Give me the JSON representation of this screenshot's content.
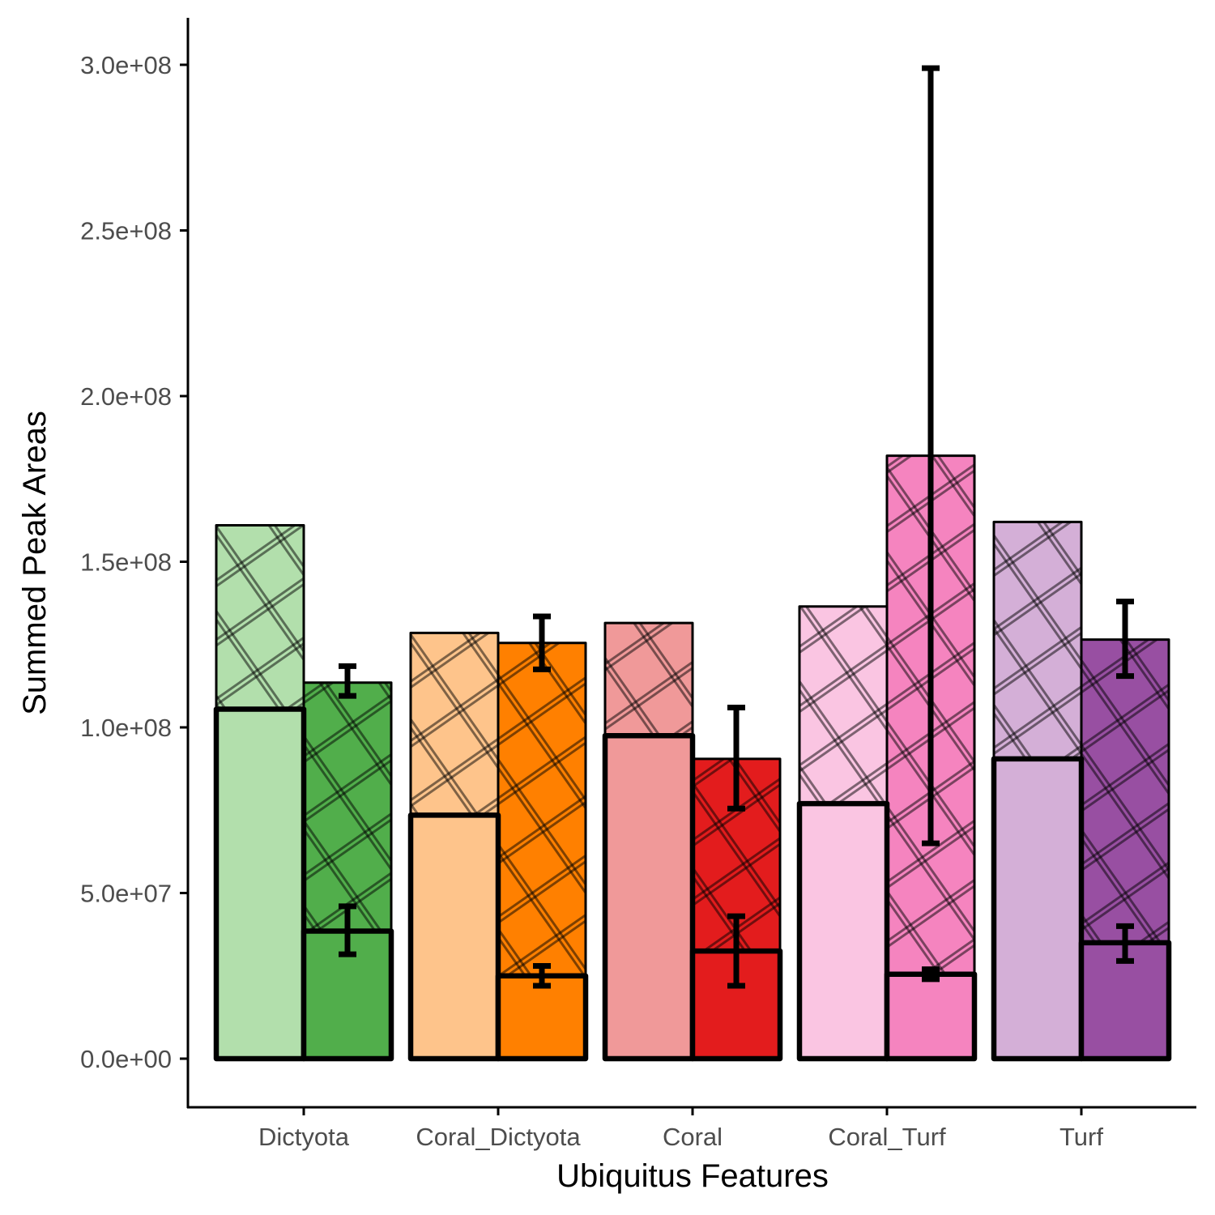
{
  "chart_data": {
    "type": "bar",
    "xlabel": "Ubiquitus Features",
    "ylabel": "Summed Peak Areas",
    "ylim": [
      -15000000,
      315000000
    ],
    "yticks": [
      0,
      50000000,
      100000000,
      150000000,
      200000000,
      250000000,
      300000000
    ],
    "ytick_labels": [
      "0.0e+00",
      "5.0e+07",
      "1.0e+08",
      "1.5e+08",
      "2.0e+08",
      "2.5e+08",
      "3.0e+08"
    ],
    "categories": [
      "Dictyota",
      "Coral_Dictyota",
      "Coral",
      "Coral_Turf",
      "Turf"
    ],
    "colors": {
      "light": [
        "#b2dfac",
        "#fec48b",
        "#f09999",
        "#fac5e2",
        "#d4afd7"
      ],
      "dark": [
        "#51ae4b",
        "#ff8000",
        "#e31c1d",
        "#f584bf",
        "#984fa2"
      ]
    },
    "series": [
      {
        "key": "light_hatched",
        "pattern": "crosshatch",
        "values": [
          161000000,
          128500000,
          131500000,
          136500000,
          162000000
        ]
      },
      {
        "key": "dark_hatched",
        "pattern": "crosshatch",
        "values": [
          113500000,
          125500000,
          90500000,
          182000000,
          126500000
        ],
        "error": [
          [
            109500000,
            118500000
          ],
          [
            117500000,
            133500000
          ],
          [
            75500000,
            106000000
          ],
          [
            65000000,
            299000000
          ],
          [
            115500000,
            138000000
          ]
        ]
      },
      {
        "key": "light_solid",
        "pattern": "none",
        "values": [
          105500000,
          73500000,
          97500000,
          77000000,
          90500000
        ]
      },
      {
        "key": "dark_solid",
        "pattern": "none",
        "values": [
          38500000,
          25000000,
          32500000,
          25500000,
          35000000
        ],
        "error": [
          [
            31500000,
            46000000
          ],
          [
            22000000,
            28000000
          ],
          [
            22000000,
            43000000
          ],
          [
            24000000,
            27000000
          ],
          [
            29500000,
            40000000
          ]
        ]
      }
    ]
  }
}
